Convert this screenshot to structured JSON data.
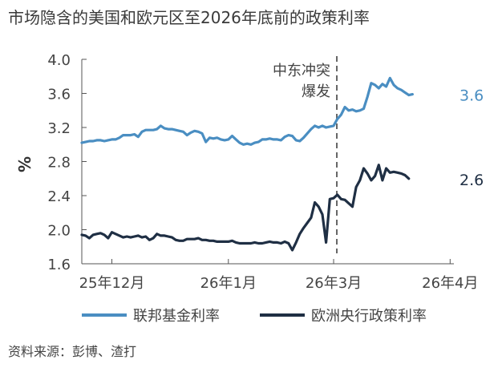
{
  "title": "市场隐含的美国和欧元区至2026年底前的政策利率",
  "source": "资料来源：彭博、渣打",
  "chart_data": {
    "type": "line",
    "ylabel": "%",
    "ylim": [
      1.6,
      4.0
    ],
    "yticks": [
      "4.0",
      "3.6",
      "3.2",
      "2.8",
      "2.4",
      "2.0",
      "1.6"
    ],
    "yticks_values": [
      4.0,
      3.6,
      3.2,
      2.8,
      2.4,
      2.0,
      1.6
    ],
    "xticks": [
      "25年12月",
      "26年1月",
      "26年3月",
      "26年4月"
    ],
    "xticks_days": [
      0,
      31,
      59,
      90
    ],
    "xlim_days": [
      -8,
      91
    ],
    "grid": false,
    "legend_position": "bottom",
    "annotation": {
      "lines": [
        "中东冲突",
        "爆发"
      ],
      "date_day": 59
    },
    "series": [
      {
        "name": "联邦基金利率",
        "color": "#4a8ec2",
        "end_label": "3.6",
        "points": [
          [
            -8,
            3.02
          ],
          [
            -7,
            3.03
          ],
          [
            -6,
            3.04
          ],
          [
            -5,
            3.04
          ],
          [
            -4,
            3.05
          ],
          [
            -3,
            3.05
          ],
          [
            -2,
            3.04
          ],
          [
            -1,
            3.05
          ],
          [
            0,
            3.06
          ],
          [
            1,
            3.06
          ],
          [
            2,
            3.08
          ],
          [
            3,
            3.11
          ],
          [
            4,
            3.11
          ],
          [
            5,
            3.11
          ],
          [
            6,
            3.12
          ],
          [
            7,
            3.09
          ],
          [
            8,
            3.15
          ],
          [
            9,
            3.17
          ],
          [
            10,
            3.17
          ],
          [
            11,
            3.17
          ],
          [
            12,
            3.18
          ],
          [
            13,
            3.22
          ],
          [
            14,
            3.19
          ],
          [
            15,
            3.18
          ],
          [
            16,
            3.18
          ],
          [
            17,
            3.17
          ],
          [
            18,
            3.16
          ],
          [
            19,
            3.15
          ],
          [
            20,
            3.11
          ],
          [
            21,
            3.14
          ],
          [
            22,
            3.16
          ],
          [
            23,
            3.15
          ],
          [
            24,
            3.13
          ],
          [
            25,
            3.03
          ],
          [
            26,
            3.08
          ],
          [
            27,
            3.07
          ],
          [
            28,
            3.08
          ],
          [
            29,
            3.06
          ],
          [
            30,
            3.05
          ],
          [
            31,
            3.06
          ],
          [
            32,
            3.1
          ],
          [
            33,
            3.06
          ],
          [
            34,
            3.02
          ],
          [
            35,
            3.0
          ],
          [
            36,
            3.01
          ],
          [
            37,
            3.0
          ],
          [
            38,
            3.02
          ],
          [
            39,
            3.03
          ],
          [
            40,
            3.06
          ],
          [
            41,
            3.06
          ],
          [
            42,
            3.07
          ],
          [
            43,
            3.06
          ],
          [
            44,
            3.06
          ],
          [
            45,
            3.05
          ],
          [
            46,
            3.09
          ],
          [
            47,
            3.11
          ],
          [
            48,
            3.1
          ],
          [
            49,
            3.05
          ],
          [
            50,
            3.04
          ],
          [
            51,
            3.08
          ],
          [
            52,
            3.13
          ],
          [
            53,
            3.18
          ],
          [
            54,
            3.22
          ],
          [
            55,
            3.2
          ],
          [
            56,
            3.22
          ],
          [
            57,
            3.2
          ],
          [
            58,
            3.21
          ],
          [
            59,
            3.22
          ],
          [
            60,
            3.3
          ],
          [
            61,
            3.35
          ],
          [
            62,
            3.44
          ],
          [
            63,
            3.4
          ],
          [
            64,
            3.41
          ],
          [
            65,
            3.39
          ],
          [
            66,
            3.4
          ],
          [
            67,
            3.42
          ],
          [
            68,
            3.56
          ],
          [
            69,
            3.72
          ],
          [
            70,
            3.7
          ],
          [
            71,
            3.66
          ],
          [
            72,
            3.71
          ],
          [
            73,
            3.68
          ],
          [
            74,
            3.78
          ],
          [
            75,
            3.7
          ],
          [
            76,
            3.66
          ],
          [
            77,
            3.64
          ],
          [
            78,
            3.61
          ],
          [
            79,
            3.58
          ],
          [
            80,
            3.59
          ]
        ]
      },
      {
        "name": "欧洲央行政策利率",
        "color": "#1f2f44",
        "end_label": "2.6",
        "points": [
          [
            -8,
            1.94
          ],
          [
            -7,
            1.93
          ],
          [
            -6,
            1.9
          ],
          [
            -5,
            1.94
          ],
          [
            -4,
            1.95
          ],
          [
            -3,
            1.96
          ],
          [
            -2,
            1.94
          ],
          [
            -1,
            1.9
          ],
          [
            0,
            1.97
          ],
          [
            1,
            1.95
          ],
          [
            2,
            1.93
          ],
          [
            3,
            1.91
          ],
          [
            4,
            1.92
          ],
          [
            5,
            1.91
          ],
          [
            6,
            1.92
          ],
          [
            7,
            1.93
          ],
          [
            8,
            1.91
          ],
          [
            9,
            1.92
          ],
          [
            10,
            1.88
          ],
          [
            11,
            1.9
          ],
          [
            12,
            1.95
          ],
          [
            13,
            1.93
          ],
          [
            14,
            1.93
          ],
          [
            15,
            1.92
          ],
          [
            16,
            1.91
          ],
          [
            17,
            1.88
          ],
          [
            18,
            1.87
          ],
          [
            19,
            1.87
          ],
          [
            20,
            1.89
          ],
          [
            21,
            1.89
          ],
          [
            22,
            1.89
          ],
          [
            23,
            1.9
          ],
          [
            24,
            1.88
          ],
          [
            25,
            1.88
          ],
          [
            26,
            1.87
          ],
          [
            27,
            1.87
          ],
          [
            28,
            1.86
          ],
          [
            29,
            1.86
          ],
          [
            30,
            1.86
          ],
          [
            31,
            1.86
          ],
          [
            32,
            1.87
          ],
          [
            33,
            1.85
          ],
          [
            34,
            1.84
          ],
          [
            35,
            1.84
          ],
          [
            36,
            1.84
          ],
          [
            37,
            1.84
          ],
          [
            38,
            1.85
          ],
          [
            39,
            1.84
          ],
          [
            40,
            1.84
          ],
          [
            41,
            1.85
          ],
          [
            42,
            1.86
          ],
          [
            43,
            1.85
          ],
          [
            44,
            1.85
          ],
          [
            45,
            1.84
          ],
          [
            46,
            1.86
          ],
          [
            47,
            1.84
          ],
          [
            48,
            1.76
          ],
          [
            49,
            1.85
          ],
          [
            50,
            1.95
          ],
          [
            51,
            2.02
          ],
          [
            52,
            2.08
          ],
          [
            53,
            2.14
          ],
          [
            54,
            2.32
          ],
          [
            55,
            2.27
          ],
          [
            56,
            2.18
          ],
          [
            57,
            1.85
          ],
          [
            58,
            2.36
          ],
          [
            59,
            2.37
          ],
          [
            60,
            2.41
          ],
          [
            61,
            2.36
          ],
          [
            62,
            2.35
          ],
          [
            63,
            2.31
          ],
          [
            64,
            2.27
          ],
          [
            65,
            2.5
          ],
          [
            66,
            2.58
          ],
          [
            67,
            2.72
          ],
          [
            68,
            2.66
          ],
          [
            69,
            2.58
          ],
          [
            70,
            2.63
          ],
          [
            71,
            2.76
          ],
          [
            72,
            2.58
          ],
          [
            73,
            2.72
          ],
          [
            74,
            2.67
          ],
          [
            75,
            2.68
          ],
          [
            76,
            2.67
          ],
          [
            77,
            2.66
          ],
          [
            78,
            2.64
          ],
          [
            79,
            2.6
          ]
        ]
      }
    ]
  }
}
